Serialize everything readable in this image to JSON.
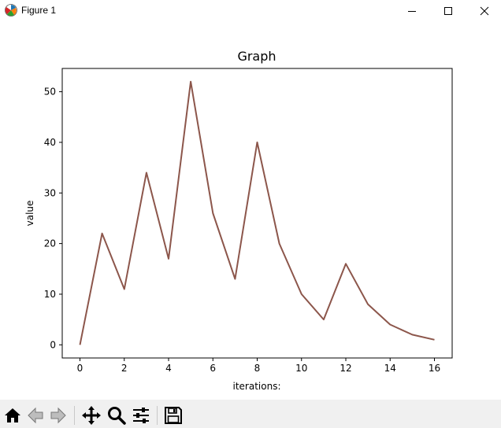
{
  "window": {
    "title": "Figure 1",
    "icons": {
      "app": "matplotlib-logo-icon",
      "minimize": "minimize-icon",
      "maximize": "maximize-icon",
      "close": "close-icon"
    }
  },
  "chart_data": {
    "type": "line",
    "title": "Graph",
    "xlabel": "iterations:",
    "ylabel": "value",
    "x": [
      0,
      1,
      2,
      3,
      4,
      5,
      6,
      7,
      8,
      9,
      10,
      11,
      12,
      13,
      14,
      15,
      16
    ],
    "series": [
      {
        "values": [
          0,
          22,
          11,
          34,
          17,
          52,
          26,
          13,
          40,
          20,
          10,
          5,
          16,
          8,
          4,
          2,
          1
        ],
        "color": "#8c564b"
      }
    ],
    "xlim": [
      -0.8,
      16.8
    ],
    "ylim": [
      -2.6,
      54.6
    ],
    "xticks": [
      0,
      2,
      4,
      6,
      8,
      10,
      12,
      14,
      16
    ],
    "yticks": [
      0,
      10,
      20,
      30,
      40,
      50
    ],
    "grid": false,
    "legend": "none"
  },
  "toolbar": {
    "buttons": [
      {
        "name": "home-button",
        "icon": "home-icon"
      },
      {
        "name": "back-button",
        "icon": "back-arrow-icon"
      },
      {
        "name": "forward-button",
        "icon": "forward-arrow-icon"
      },
      {
        "name": "pan-button",
        "icon": "move-icon"
      },
      {
        "name": "zoom-button",
        "icon": "magnifier-icon"
      },
      {
        "name": "configure-subplots-button",
        "icon": "sliders-icon"
      },
      {
        "name": "save-button",
        "icon": "floppy-disk-icon"
      }
    ]
  }
}
